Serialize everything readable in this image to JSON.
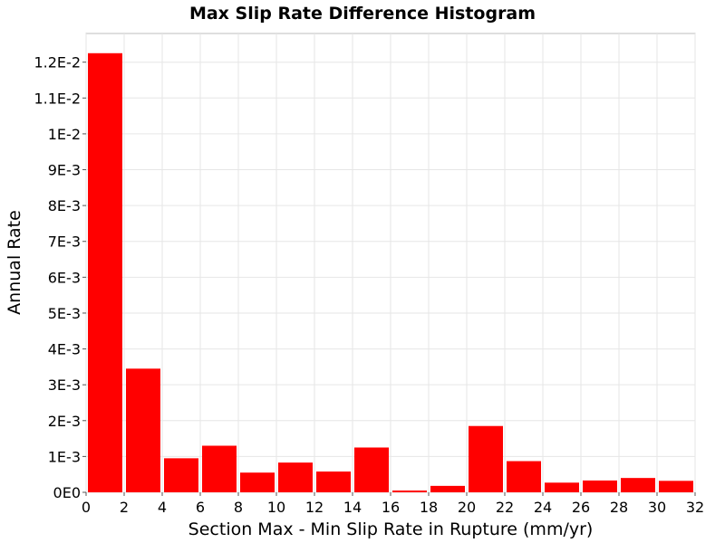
{
  "chart_data": {
    "type": "bar",
    "title": "Max Slip Rate Difference Histogram",
    "xlabel": "Section Max - Min Slip Rate in Rupture (mm/yr)",
    "ylabel": "Annual Rate",
    "bin_width": 2,
    "x": [
      1,
      3,
      5,
      7,
      9,
      11,
      13,
      15,
      17,
      19,
      21,
      23,
      25,
      27,
      29,
      31
    ],
    "values": [
      0.01225,
      0.00345,
      0.00095,
      0.0013,
      0.00055,
      0.00083,
      0.00058,
      0.00125,
      5e-05,
      0.00018,
      0.00185,
      0.00087,
      0.00027,
      0.00033,
      0.0004,
      0.00032
    ],
    "xlim": [
      0,
      32
    ],
    "ylim": [
      0,
      0.0128
    ],
    "xticks": [
      0,
      2,
      4,
      6,
      8,
      10,
      12,
      14,
      16,
      18,
      20,
      22,
      24,
      26,
      28,
      30,
      32
    ],
    "xtick_labels": [
      "0",
      "2",
      "4",
      "6",
      "8",
      "10",
      "12",
      "14",
      "16",
      "18",
      "20",
      "22",
      "24",
      "26",
      "28",
      "30",
      "32"
    ],
    "yticks": [
      0,
      0.001,
      0.002,
      0.003,
      0.004,
      0.005,
      0.006,
      0.007,
      0.008,
      0.009,
      0.01,
      0.011,
      0.012
    ],
    "ytick_labels": [
      "0E0",
      "1E-3",
      "2E-3",
      "3E-3",
      "4E-3",
      "5E-3",
      "6E-3",
      "7E-3",
      "8E-3",
      "9E-3",
      "1E-2",
      "1.1E-2",
      "1.2E-2"
    ],
    "grid": true,
    "bar_color": "#ff0000",
    "legend": "none"
  }
}
